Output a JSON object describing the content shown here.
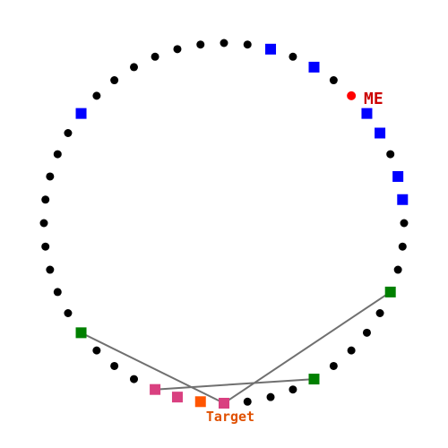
{
  "labels": {
    "me": "ME",
    "target": "Target"
  },
  "colors": {
    "dot": "#000000",
    "me": "#ff0000",
    "me_label": "#cc0000",
    "target": "#ff5500",
    "target_label": "#e05000",
    "blue": "#0000ff",
    "green": "#008000",
    "pink": "#d94080",
    "line": "#707070"
  },
  "board": {
    "slot_count": 48,
    "me_slot": 6,
    "target_slot": 25,
    "markers": [
      {
        "slot": 2,
        "color": "blue",
        "name": "blue-marker"
      },
      {
        "slot": 4,
        "color": "blue",
        "name": "blue-marker"
      },
      {
        "slot": 7,
        "color": "blue",
        "name": "blue-marker"
      },
      {
        "slot": 8,
        "color": "blue",
        "name": "blue-marker"
      },
      {
        "slot": 10,
        "color": "blue",
        "name": "blue-marker"
      },
      {
        "slot": 11,
        "color": "blue",
        "name": "blue-marker"
      },
      {
        "slot": 15,
        "color": "green",
        "name": "green-marker"
      },
      {
        "slot": 20,
        "color": "green",
        "name": "green-marker"
      },
      {
        "slot": 24,
        "color": "pink",
        "name": "pink-marker"
      },
      {
        "slot": 26,
        "color": "pink",
        "name": "pink-marker"
      },
      {
        "slot": 27,
        "color": "pink",
        "name": "pink-marker"
      },
      {
        "slot": 31,
        "color": "green",
        "name": "green-marker"
      },
      {
        "slot": 41,
        "color": "blue",
        "name": "blue-marker"
      }
    ],
    "links": [
      [
        15,
        24
      ],
      [
        20,
        27
      ],
      [
        31,
        24
      ]
    ]
  }
}
